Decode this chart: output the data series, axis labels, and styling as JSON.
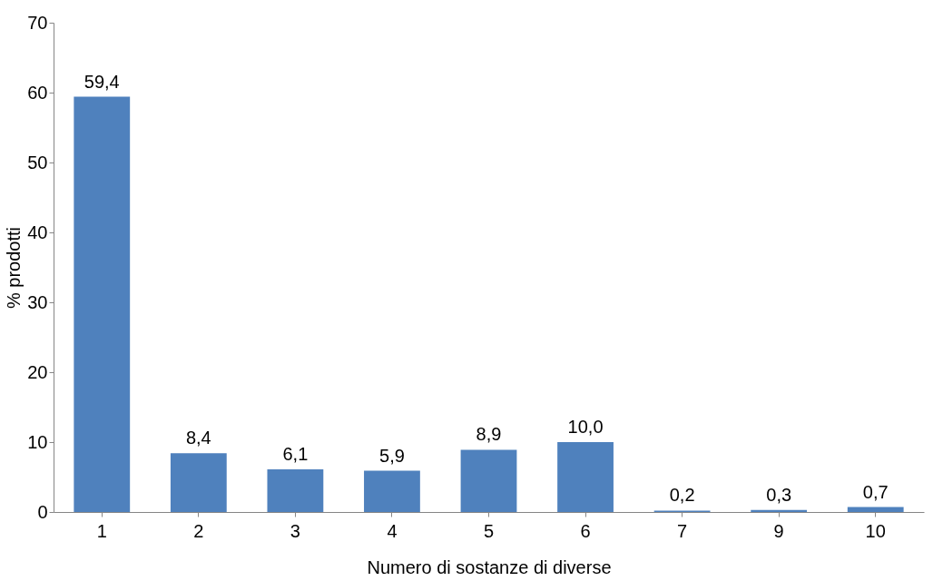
{
  "chart_data": {
    "type": "bar",
    "xlabel": "Numero di sostanze di diverse",
    "ylabel": "% prodotti",
    "categories": [
      "1",
      "2",
      "3",
      "4",
      "5",
      "6",
      "7",
      "9",
      "10"
    ],
    "values": [
      59.4,
      8.4,
      6.1,
      5.9,
      8.9,
      10.0,
      0.2,
      0.3,
      0.7
    ],
    "value_labels": [
      "59,4",
      "8,4",
      "6,1",
      "5,9",
      "8,9",
      "10,0",
      "0,2",
      "0,3",
      "0,7"
    ],
    "color": "#4f81bd",
    "ylim": [
      0,
      70
    ],
    "yticks": [
      0,
      10,
      20,
      30,
      40,
      50,
      60,
      70
    ],
    "grid": false
  }
}
